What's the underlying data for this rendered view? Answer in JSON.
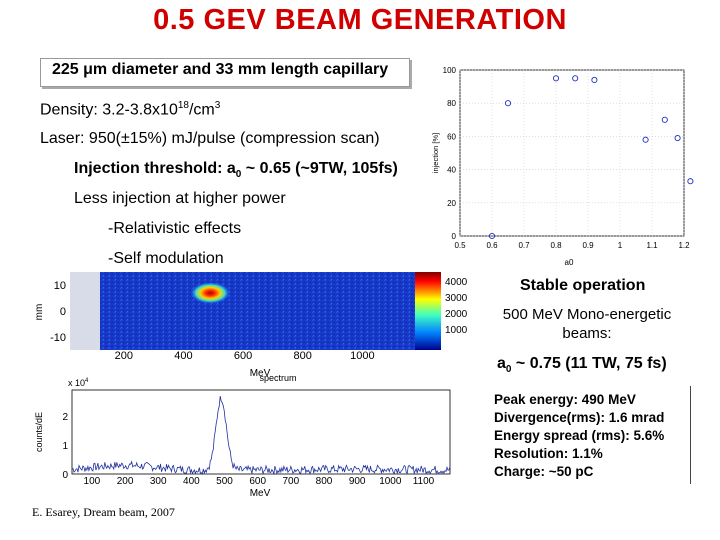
{
  "title": "0.5 GEV BEAM GENERATION",
  "capillary": "225 μm diameter and 33 mm length capillary",
  "density": {
    "prefix": "Density: 3.2-3.8x10",
    "exp": "18",
    "unit": "/cm",
    "unit_exp": "3"
  },
  "laser": "Laser: 950(±15%) mJ/pulse (compression scan)",
  "injection": {
    "prefix": "Injection threshold: a",
    "sub": "0",
    "suffix": " ~ 0.65 (~9TW, 105fs)"
  },
  "less_injection": "Less injection at higher power",
  "effects": [
    "-Relativistic effects",
    "-Self modulation"
  ],
  "stable": "Stable operation",
  "mono": "500 MeV Mono-energetic beams:",
  "a0_right": {
    "prefix": "a",
    "sub": "0",
    "suffix": " ~ 0.75 (11 TW, 75 fs)"
  },
  "specs": [
    "Peak energy: 490 MeV",
    "Divergence(rms): 1.6 mrad",
    "Energy spread (rms): 5.6%",
    "Resolution: 1.1%",
    "Charge: ~50 pC"
  ],
  "footer": "E. Esarey, Dream beam, 2007",
  "chart_data": [
    {
      "type": "scatter",
      "xlabel": "a0",
      "ylabel": "injection [%]",
      "xlim": [
        0.5,
        1.2
      ],
      "ylim": [
        0,
        100
      ],
      "xticks": [
        "0.5",
        "0.6",
        "0.7",
        "0.8",
        "0.9",
        "1",
        "1.1",
        "1.2"
      ],
      "yticks": [
        "0",
        "20",
        "40",
        "60",
        "80",
        "100"
      ],
      "points": [
        [
          0.6,
          0
        ],
        [
          0.65,
          80
        ],
        [
          0.8,
          95
        ],
        [
          0.86,
          95
        ],
        [
          0.92,
          94
        ],
        [
          1.08,
          58
        ],
        [
          1.14,
          70
        ],
        [
          1.18,
          59
        ],
        [
          1.22,
          33
        ]
      ]
    },
    {
      "type": "heatmap",
      "xlabel": "MeV",
      "ylabel": "mm",
      "xticks": [
        "200",
        "400",
        "600",
        "800",
        "1000"
      ],
      "yticks": [
        "10",
        "0",
        "-10"
      ],
      "colorbar_ticks": [
        "4000",
        "3000",
        "2000",
        "1000"
      ],
      "peak": {
        "x_mev": 490,
        "y_mm": 4
      }
    },
    {
      "type": "line",
      "title": "spectrum",
      "xlabel": "MeV",
      "ylabel": "counts/dE",
      "multiplier": "x 10",
      "multiplier_exp": "4",
      "xticks": [
        "100",
        "200",
        "300",
        "400",
        "500",
        "600",
        "700",
        "800",
        "900",
        "1000",
        "1100"
      ],
      "yticks": [
        "2",
        "1",
        "0"
      ],
      "peak_x": 490,
      "peak_y": 2.5
    }
  ]
}
